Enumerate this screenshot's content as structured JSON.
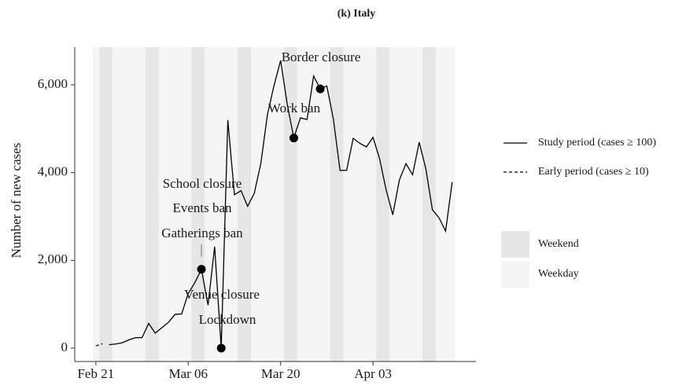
{
  "chart_data": {
    "type": "line",
    "title": "(k) Italy",
    "y_label": "Number of new cases",
    "x": [
      0,
      1,
      2,
      3,
      4,
      5,
      6,
      7,
      8,
      9,
      10,
      11,
      12,
      13,
      14,
      15,
      16,
      17,
      18,
      19,
      20,
      21,
      22,
      23,
      24,
      25,
      26,
      27,
      28,
      29,
      30,
      31,
      32,
      33,
      34,
      35,
      36,
      37,
      38,
      39,
      40,
      41,
      42,
      43,
      44,
      45,
      46,
      47,
      48,
      49,
      50,
      51,
      52,
      53,
      54
    ],
    "series": [
      {
        "name": "Study period (cases ≥ 100)",
        "color": "#000000",
        "dash": false,
        "values": [
          null,
          null,
          78,
          93,
          123,
          187,
          238,
          240,
          562,
          342,
          466,
          587,
          769,
          778,
          1247,
          1492,
          1797,
          977,
          2313,
          0,
          5198,
          3497,
          3590,
          3233,
          3526,
          4207,
          5322,
          5986,
          6557,
          5560,
          4789,
          5249,
          5210,
          6203,
          5909,
          5974,
          5217,
          4050,
          4053,
          4782,
          4668,
          4585,
          4805,
          4316,
          3599,
          3039,
          3836,
          4204,
          3951,
          4694,
          4092,
          3153,
          2972,
          2667,
          3786
        ]
      },
      {
        "name": "Early period (cases ≥ 10)",
        "color": "#000000",
        "dash": true,
        "values": [
          50,
          100,
          null,
          null,
          null,
          null,
          null,
          null,
          null,
          null,
          null,
          null,
          null,
          null,
          null,
          null,
          null,
          null,
          null,
          null,
          null,
          null,
          null,
          null,
          null,
          null,
          null,
          null,
          null,
          null,
          null,
          null,
          null,
          null,
          null,
          null,
          null,
          null,
          null,
          null,
          null,
          null,
          null,
          null,
          null,
          null,
          null,
          null,
          null,
          null,
          null,
          null,
          null,
          null,
          null
        ]
      }
    ],
    "events": [
      {
        "x": 16,
        "labels": [
          "School closure",
          "Events ban",
          "Gatherings ban"
        ]
      },
      {
        "x": 19,
        "labels": [
          "Venue closure",
          "Lockdown"
        ]
      },
      {
        "x": 30,
        "labels": [
          "Work ban"
        ]
      },
      {
        "x": 34,
        "labels": [
          "Border closure"
        ]
      }
    ],
    "shading": [
      {
        "name": "Weekend",
        "color": "#e6e6e6",
        "starts": [
          1,
          8,
          15,
          22,
          29,
          36,
          43,
          50
        ],
        "length": 2
      },
      {
        "name": "Weekday",
        "color": "#f5f5f5",
        "range": [
          0,
          54
        ]
      }
    ],
    "xlim": [
      -3.2,
      57.6
    ],
    "ylim": [
      -305,
      6860
    ],
    "xticks": [
      {
        "value": 0,
        "label": "Feb 21"
      },
      {
        "value": 14,
        "label": "Mar 06"
      },
      {
        "value": 28,
        "label": "Mar 20"
      },
      {
        "value": 42,
        "label": "Apr 03"
      }
    ],
    "yticks": [
      0,
      {
        "value": 2000,
        "label": "2,000"
      },
      {
        "value": 4000,
        "label": "4,000"
      },
      {
        "value": 6000,
        "label": "6,000"
      }
    ]
  }
}
